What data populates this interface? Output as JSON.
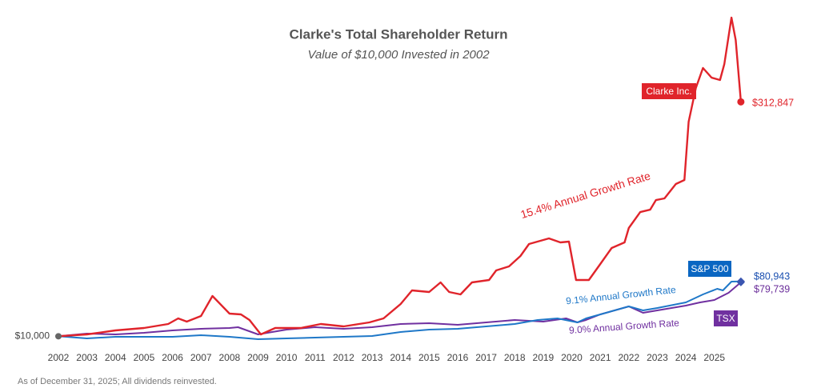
{
  "chart_data": {
    "type": "line",
    "title": "Clarke's Total Shareholder Return",
    "subtitle": "Value of $10,000 Invested in 2002",
    "footnote": "As of December 31, 2025; All dividends reinvested.",
    "xlim": [
      2002,
      2027
    ],
    "xticks": [
      2002,
      2003,
      2004,
      2005,
      2006,
      2007,
      2008,
      2009,
      2010,
      2011,
      2012,
      2013,
      2014,
      2015,
      2016,
      2017,
      2018,
      2019,
      2020,
      2021,
      2022,
      2023,
      2024,
      2025
    ],
    "ylim": [
      0,
      430000
    ],
    "yticks": [
      {
        "value": 10000,
        "label": "$10,000"
      }
    ],
    "grid": false,
    "series": [
      {
        "name": "Clarke Inc.",
        "color": "#e0242b",
        "note": "15.4% Annual Growth Rate",
        "x": [
          2002.0,
          2003.0,
          2004.0,
          2005.0,
          2005.85,
          2006.2,
          2006.5,
          2007.0,
          2007.4,
          2008.0,
          2008.4,
          2008.7,
          2009.1,
          2009.6,
          2010.5,
          2011.2,
          2012.0,
          2012.9,
          2013.4,
          2014.0,
          2014.4,
          2015.0,
          2015.4,
          2015.7,
          2016.1,
          2016.5,
          2017.1,
          2017.35,
          2017.8,
          2018.2,
          2018.5,
          2019.2,
          2019.6,
          2019.9,
          2020.15,
          2020.6,
          2021.0,
          2021.4,
          2021.85,
          2022.0,
          2022.4,
          2022.75,
          2022.95,
          2023.25,
          2023.65,
          2023.95,
          2024.1,
          2024.35,
          2024.6,
          2024.9,
          2025.2,
          2025.35,
          2025.6,
          2025.75,
          2025.93
        ],
        "values": [
          10000,
          12400,
          17600,
          20700,
          25800,
          33100,
          28900,
          36200,
          62000,
          39300,
          38200,
          31000,
          12400,
          20700,
          20700,
          25800,
          22700,
          27900,
          33100,
          51700,
          69300,
          67200,
          79600,
          67200,
          64100,
          79600,
          82700,
          95100,
          100300,
          113700,
          129200,
          136400,
          131300,
          132300,
          82700,
          82700,
          103400,
          124000,
          131300,
          149900,
          170500,
          173600,
          186000,
          188100,
          206700,
          211900,
          287300,
          330800,
          356600,
          344200,
          341100,
          361800,
          421700,
          392800,
          312847
        ],
        "value_labels": [
          null,
          null,
          null,
          null,
          null,
          null,
          null,
          null,
          null,
          null,
          null,
          null,
          null,
          null,
          null,
          null,
          null,
          null,
          null,
          null,
          null,
          null,
          null,
          null,
          null,
          null,
          null,
          null,
          null,
          null,
          null,
          null,
          null,
          null,
          null,
          null,
          null,
          null,
          null,
          null,
          null,
          null,
          null,
          null,
          null,
          null,
          null,
          null,
          null,
          null,
          null,
          null,
          null,
          null,
          "$312,847"
        ]
      },
      {
        "name": "S&P 500",
        "color": "#1f78c8",
        "note": "9.1% Annual Growth Rate",
        "x": [
          2002,
          2003,
          2004,
          2005,
          2006,
          2007,
          2008,
          2009,
          2010,
          2011,
          2012,
          2013,
          2014,
          2015,
          2016,
          2017,
          2018,
          2018.8,
          2019.5,
          2020.2,
          2020.5,
          2021,
          2022,
          2022.5,
          2023,
          2024,
          2024.6,
          2025.1,
          2025.3,
          2025.6,
          2025.93
        ],
        "values": [
          10000,
          7200,
          9300,
          9300,
          9300,
          11400,
          9300,
          6200,
          7200,
          8300,
          9300,
          10300,
          15500,
          18600,
          19600,
          22700,
          25800,
          31000,
          33100,
          27900,
          33100,
          38200,
          48600,
          43400,
          46500,
          53700,
          64100,
          71300,
          69300,
          80600,
          80943
        ],
        "value_labels": [
          null,
          null,
          null,
          null,
          null,
          null,
          null,
          null,
          null,
          null,
          null,
          null,
          null,
          null,
          null,
          null,
          null,
          null,
          null,
          null,
          null,
          null,
          null,
          null,
          null,
          null,
          null,
          null,
          null,
          null,
          "$80,943"
        ]
      },
      {
        "name": "TSX",
        "color": "#7030a0",
        "note": "9.0% Annual Growth Rate",
        "x": [
          2002,
          2003,
          2004,
          2005,
          2006,
          2007,
          2008,
          2008.3,
          2009,
          2010,
          2011,
          2012,
          2013,
          2014,
          2015,
          2016,
          2017,
          2018,
          2019,
          2019.8,
          2020.2,
          2020.5,
          2021,
          2022,
          2022.5,
          2023,
          2024,
          2024.5,
          2025,
          2025.5,
          2025.93
        ],
        "values": [
          10000,
          13400,
          12400,
          14500,
          17600,
          19600,
          20700,
          21700,
          12400,
          18600,
          21700,
          19600,
          21700,
          25800,
          26900,
          24800,
          27900,
          31000,
          28900,
          33100,
          27900,
          31000,
          38200,
          48600,
          40300,
          43400,
          49600,
          53700,
          56800,
          66200,
          79739
        ],
        "value_labels": [
          null,
          null,
          null,
          null,
          null,
          null,
          null,
          null,
          null,
          null,
          null,
          null,
          null,
          null,
          null,
          null,
          null,
          null,
          null,
          null,
          null,
          null,
          null,
          null,
          null,
          null,
          null,
          null,
          null,
          null,
          "$79,739"
        ]
      }
    ]
  }
}
